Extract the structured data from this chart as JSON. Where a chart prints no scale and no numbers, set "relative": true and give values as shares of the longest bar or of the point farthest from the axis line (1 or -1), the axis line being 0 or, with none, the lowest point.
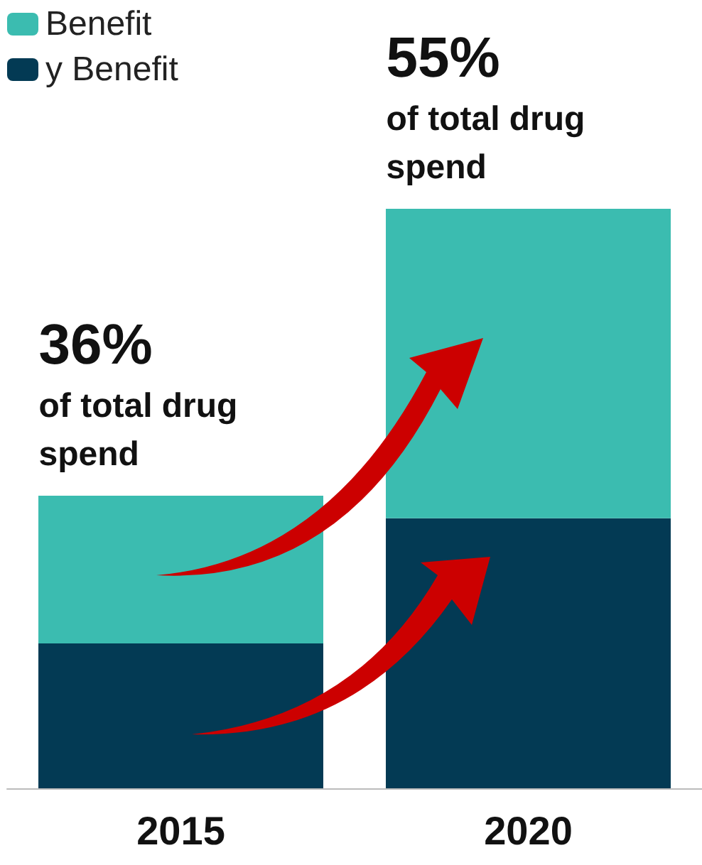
{
  "chart_data": {
    "type": "bar",
    "stacked": true,
    "relative": true,
    "categories": [
      "2015",
      "2020"
    ],
    "series": [
      {
        "name": "y Benefit",
        "color": "#033a54",
        "values": [
          0.25,
          0.466
        ]
      },
      {
        "name": "Benefit",
        "color": "#3bbcb0",
        "values": [
          0.255,
          0.534
        ]
      }
    ],
    "legend": "top left",
    "annotations": [
      {
        "text": "36%",
        "x": "2015",
        "y": 0.505
      },
      {
        "text": "of total drug spend",
        "x": "2015",
        "y": 0.505
      },
      {
        "text": "55%",
        "x": "2020",
        "y": 1
      },
      {
        "text": "of total drug spend",
        "x": "2020",
        "y": 1
      }
    ]
  }
}
